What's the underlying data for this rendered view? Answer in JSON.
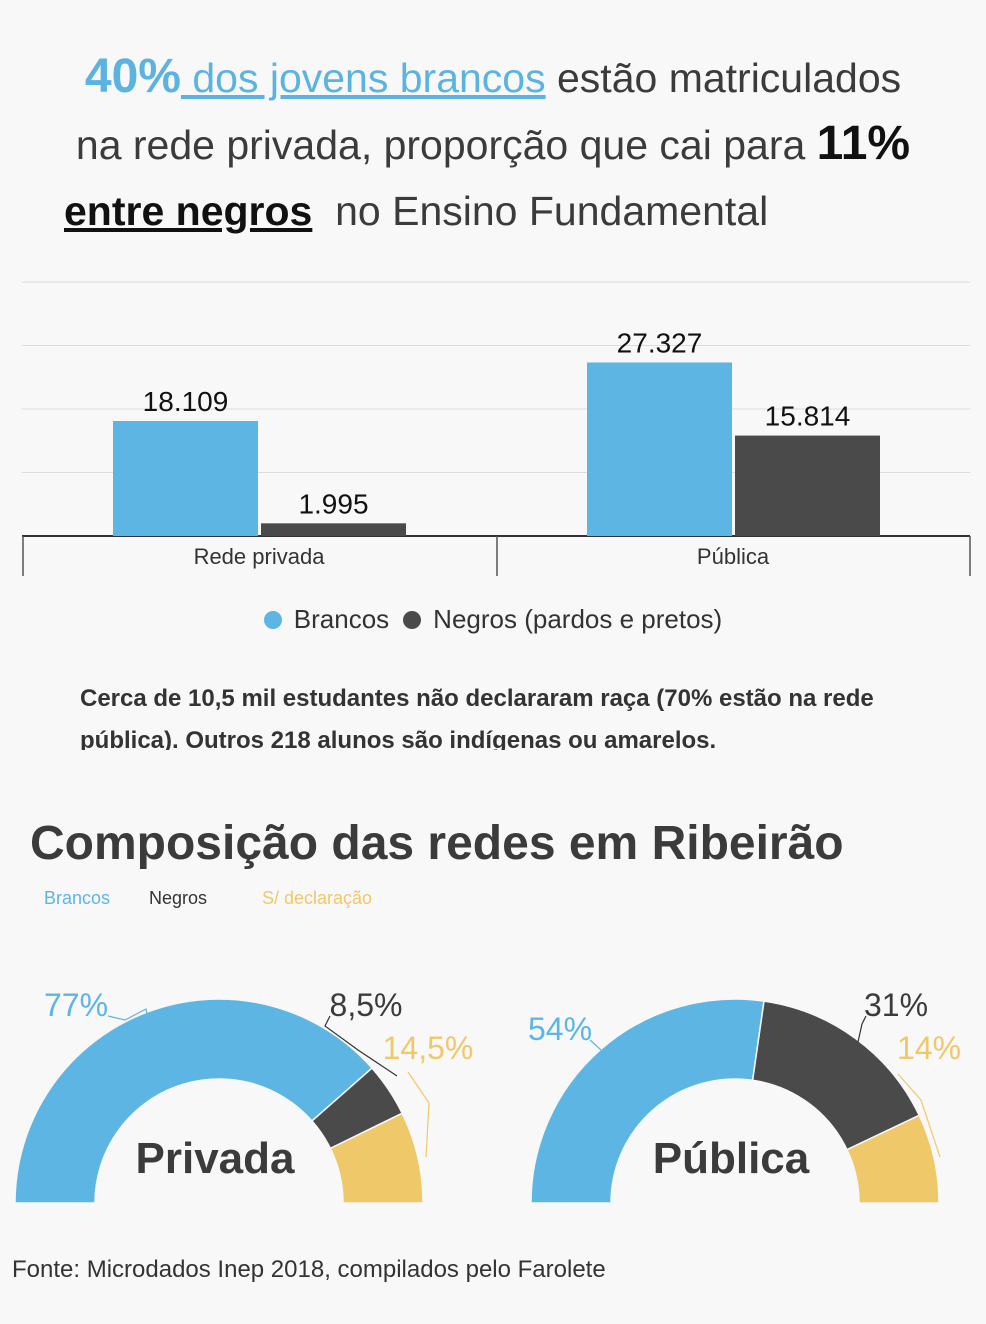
{
  "headline": {
    "part1_big": "40%",
    "part1_link": " dos jovens brancos",
    "part1_rest": " estão matriculados",
    "part2_text": "na rede privada, proporção que cai para ",
    "part2_big": "11%",
    "part3_link": "entre negros",
    "part3_rest": "  no Ensino Fundamental"
  },
  "colors": {
    "brancos": "#5db5e3",
    "negros": "#4a4a4a",
    "sem_declaracao": "#efc869"
  },
  "legend": {
    "brancos": "Brancos",
    "negros": "Negros (pardos e pretos)"
  },
  "note": "Cerca de 10,5 mil estudantes não declararam raça (70% estão na rede pública). Outros 218 alunos são indígenas ou amarelos.",
  "composition": {
    "title": "Composição das redes em Ribeirão",
    "legend_brancos": "Brancos",
    "legend_negros": "Negros",
    "legend_sem": "S/ declaração"
  },
  "source": "Fonte: Microdados Inep 2018, compilados pelo Farolete",
  "chart_data": [
    {
      "type": "bar",
      "categories": [
        "Rede privada",
        "Pública"
      ],
      "series": [
        {
          "name": "Brancos",
          "values": [
            18109,
            27327
          ],
          "labels": [
            "18.109",
            "27.327"
          ]
        },
        {
          "name": "Negros (pardos e pretos)",
          "values": [
            1995,
            15814
          ],
          "labels": [
            "1.995",
            "15.814"
          ]
        }
      ],
      "ylim": [
        0,
        40000
      ],
      "grid": true
    },
    {
      "type": "pie",
      "variant": "semi-donut",
      "center_label": "Privada",
      "slices": [
        {
          "name": "Brancos",
          "value": 77,
          "label": "77%"
        },
        {
          "name": "Negros",
          "value": 8.5,
          "label": "8,5%"
        },
        {
          "name": "S/ declaração",
          "value": 14.5,
          "label": "14,5%"
        }
      ]
    },
    {
      "type": "pie",
      "variant": "semi-donut",
      "center_label": "Pública",
      "slices": [
        {
          "name": "Brancos",
          "value": 54,
          "label": "54%"
        },
        {
          "name": "Negros",
          "value": 31,
          "label": "31%"
        },
        {
          "name": "S/ declaração",
          "value": 14,
          "label": "14%"
        }
      ]
    }
  ]
}
